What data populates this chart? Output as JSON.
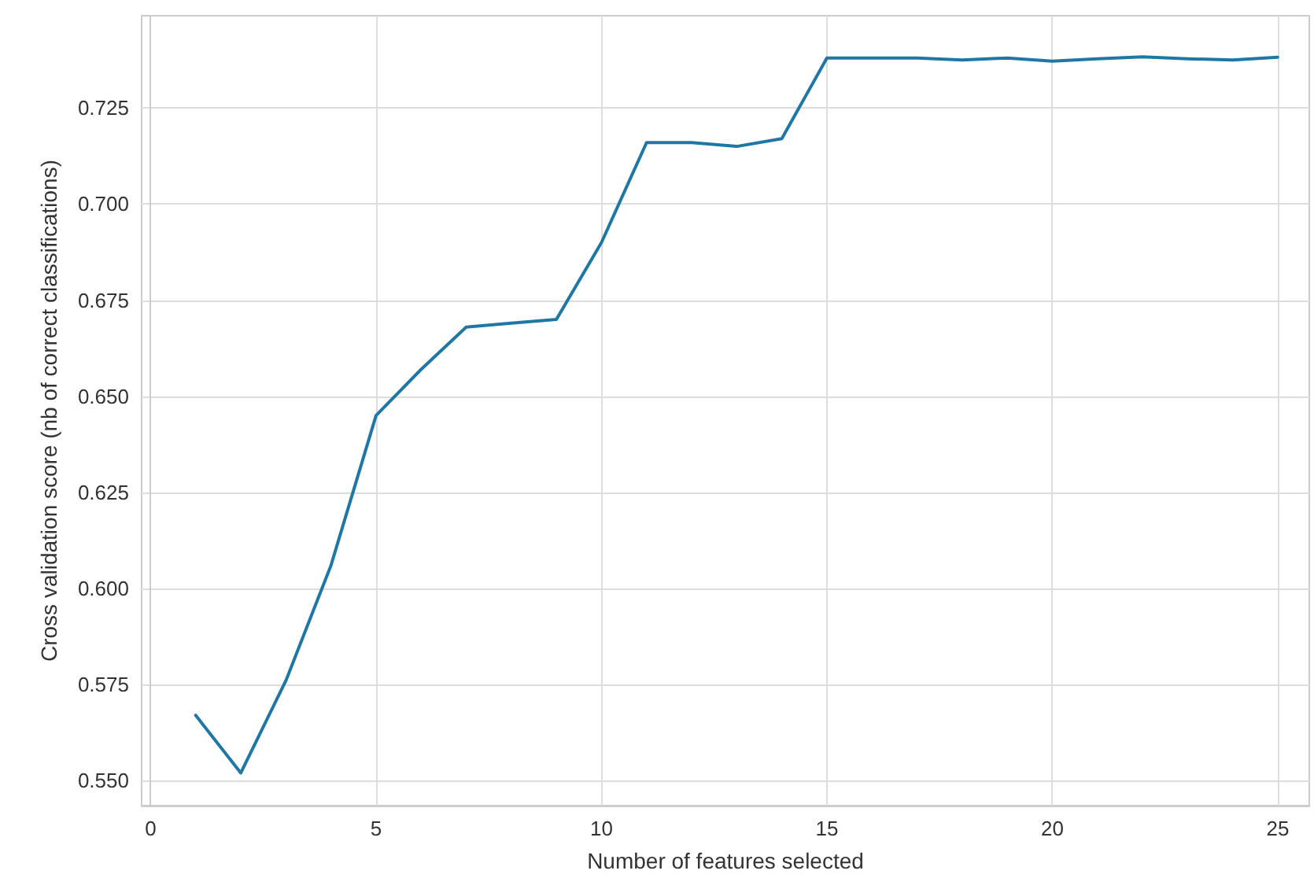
{
  "chart_data": {
    "type": "line",
    "xlabel": "Number of features selected",
    "ylabel": "Cross validation score (nb of correct classifications)",
    "x": [
      1,
      2,
      3,
      4,
      5,
      6,
      7,
      8,
      9,
      10,
      11,
      12,
      13,
      14,
      15,
      16,
      17,
      18,
      19,
      20,
      21,
      22,
      23,
      24,
      25
    ],
    "series": [
      {
        "color": "#1f77a4",
        "values": [
          0.567,
          0.552,
          0.576,
          0.606,
          0.645,
          0.657,
          0.668,
          0.669,
          0.67,
          0.69,
          0.716,
          0.716,
          0.715,
          0.717,
          0.738,
          0.738,
          0.738,
          0.7375,
          0.738,
          0.7372,
          0.7378,
          0.7383,
          0.7378,
          0.7375,
          0.7382
        ]
      }
    ],
    "xlim": [
      -0.2,
      25.7
    ],
    "xticks": [
      0,
      5,
      10,
      15,
      20,
      25
    ],
    "ylim": [
      0.5435,
      0.749
    ],
    "yticks": [
      {
        "value": 0.55,
        "label": "0.550"
      },
      {
        "value": 0.575,
        "label": "0.575"
      },
      {
        "value": 0.6,
        "label": "0.600"
      },
      {
        "value": 0.625,
        "label": "0.625"
      },
      {
        "value": 0.65,
        "label": "0.650"
      },
      {
        "value": 0.675,
        "label": "0.675"
      },
      {
        "value": 0.7,
        "label": "0.700"
      },
      {
        "value": 0.725,
        "label": "0.725"
      }
    ],
    "grid": true,
    "marker": "none",
    "line_style": "solid"
  }
}
